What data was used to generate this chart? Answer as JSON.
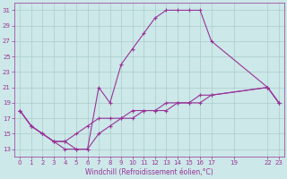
{
  "xlabel": "Windchill (Refroidissement éolien,°C)",
  "bg_color": "#cce8e8",
  "grid_color": "#aacccc",
  "line_color": "#993399",
  "xlim": [
    -0.5,
    23.5
  ],
  "ylim": [
    12,
    32
  ],
  "xticks": [
    0,
    1,
    2,
    3,
    4,
    5,
    6,
    7,
    8,
    9,
    10,
    11,
    12,
    13,
    14,
    15,
    16,
    17,
    19,
    22,
    23
  ],
  "yticks": [
    13,
    15,
    17,
    19,
    21,
    23,
    25,
    27,
    29,
    31
  ],
  "series": [
    {
      "x": [
        0,
        1,
        2,
        3,
        4,
        5,
        6,
        7,
        8,
        9,
        10,
        11,
        12,
        13,
        14,
        15,
        16,
        17,
        22,
        23
      ],
      "y": [
        18,
        16,
        15,
        14,
        13,
        13,
        13,
        21,
        19,
        24,
        26,
        28,
        30,
        31,
        31,
        31,
        31,
        27,
        21,
        19
      ]
    },
    {
      "x": [
        0,
        1,
        2,
        3,
        4,
        5,
        6,
        7,
        8,
        9,
        10,
        11,
        12,
        13,
        14,
        15,
        16,
        17,
        22,
        23
      ],
      "y": [
        18,
        16,
        15,
        14,
        14,
        15,
        16,
        17,
        17,
        17,
        18,
        18,
        18,
        19,
        19,
        19,
        20,
        20,
        21,
        19
      ]
    },
    {
      "x": [
        0,
        1,
        2,
        3,
        4,
        5,
        6,
        7,
        8,
        9,
        10,
        11,
        12,
        13,
        14,
        15,
        16,
        17,
        22,
        23
      ],
      "y": [
        18,
        16,
        15,
        14,
        14,
        13,
        13,
        15,
        16,
        17,
        17,
        18,
        18,
        18,
        19,
        19,
        19,
        20,
        21,
        19
      ]
    }
  ]
}
